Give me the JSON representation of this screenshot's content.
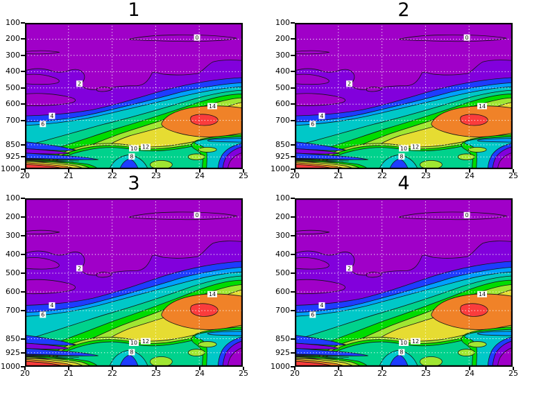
{
  "figure": {
    "background": "#ffffff"
  },
  "panels": [
    {
      "title": "1"
    },
    {
      "title": "2"
    },
    {
      "title": "3"
    },
    {
      "title": "4"
    }
  ],
  "axes": {
    "x_ticks": [
      "20",
      "21",
      "22",
      "23",
      "24",
      "25"
    ],
    "y_ticks": [
      "100",
      "200",
      "300",
      "400",
      "500",
      "600",
      "700",
      "850",
      "925",
      "1000"
    ],
    "x_range": [
      20,
      25
    ],
    "y_range": [
      100,
      1000
    ]
  },
  "contour_labels": [
    {
      "text": "0",
      "x": 23.95,
      "p": 190
    },
    {
      "text": "2",
      "x": 21.25,
      "p": 474
    },
    {
      "text": "4",
      "x": 20.62,
      "p": 672
    },
    {
      "text": "6",
      "x": 20.41,
      "p": 722
    },
    {
      "text": "8",
      "x": 22.45,
      "p": 922
    },
    {
      "text": "10",
      "x": 22.5,
      "p": 872
    },
    {
      "text": "12",
      "x": 22.77,
      "p": 863
    },
    {
      "text": "14",
      "x": 24.3,
      "p": 612
    }
  ],
  "palette": {
    "background": "#ffffff",
    "frame": "#000000",
    "contour_line": "#141414",
    "grid_line": "#ffffff",
    "label_box": "#ffffff",
    "label_text": "#000000",
    "bands": {
      "magenta": "#A000C8",
      "violet": "#8200DC",
      "blue": "#1E3CFF",
      "azure": "#00A0FF",
      "cyan": "#00C8C8",
      "seagreen": "#00D28C",
      "green": "#00DC00",
      "yellowgreen": "#A0E632",
      "yellow": "#E6DC32",
      "orange": "#F08228",
      "red": "#FA3C3C",
      "dense_contours": "#141414"
    }
  },
  "chart_data": {
    "type": "heatmap",
    "subtype": "filled-contour",
    "title": "",
    "panels": [
      "1",
      "2",
      "3",
      "4"
    ],
    "panels_note": "all four panels show the same field",
    "x": {
      "range": [
        20,
        25
      ],
      "ticks": [
        20,
        21,
        22,
        23,
        24,
        25
      ]
    },
    "y": {
      "range": [
        100,
        1000
      ],
      "ticks": [
        100,
        200,
        300,
        400,
        500,
        600,
        700,
        850,
        925,
        1000
      ],
      "direction": "pressure increasing downward",
      "scale": "linear"
    },
    "grid": {
      "on": true,
      "style": "white dotted",
      "x": [
        21,
        22,
        23,
        24
      ],
      "y": [
        200,
        300,
        400,
        500,
        600,
        700,
        850,
        925
      ]
    },
    "contour_levels": [
      0,
      2,
      4,
      6,
      8,
      10,
      12,
      14,
      16
    ],
    "contour_interval": 2,
    "labeled_contours": [
      0,
      2,
      4,
      6,
      8,
      10,
      12,
      14
    ],
    "band_colors_low_to_high": [
      "#A000C8",
      "#8200DC",
      "#1E3CFF",
      "#00A0FF",
      "#00C8C8",
      "#00D28C",
      "#00DC00",
      "#A0E632",
      "#E6DC32",
      "#F08228",
      "#FA3C3C"
    ],
    "legend": "none",
    "notable_features": [
      {
        "feature": "field minimum (< 2) across upper levels 100-400 hPa, magenta/violet"
      },
      {
        "feature": "closed 0 contour near x=23-25 at ~180-200 hPa"
      },
      {
        "feature": "main maximum > 16 centered near x=24.1, 690 hPa (red core in orange blob)"
      },
      {
        "feature": "secondary near-surface maximum > 16 at x=20-21, 950-1000 hPa with tightly packed contours"
      },
      {
        "feature": "rainbow band stack rising diagonally from lower-left toward right edge between 500 and 700 hPa"
      },
      {
        "feature": "low pocket (magenta/violet) in bottom-right corner below 900 hPa"
      }
    ]
  }
}
